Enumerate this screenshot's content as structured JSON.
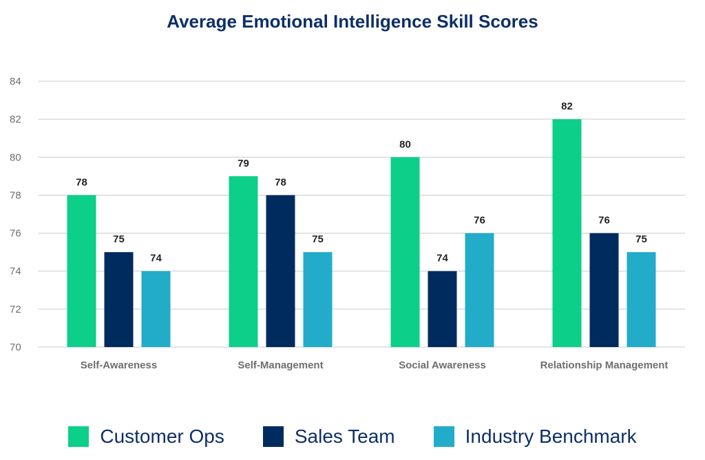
{
  "chart_data": {
    "type": "bar",
    "title": "Average Emotional Intelligence Skill Scores",
    "xlabel": "",
    "ylabel": "",
    "ylim": [
      70,
      84
    ],
    "yticks": [
      70,
      72,
      74,
      76,
      78,
      80,
      82,
      84
    ],
    "grid": true,
    "legend_position": "bottom",
    "categories": [
      "Self-Awareness",
      "Self-Management",
      "Social Awareness",
      "Relationship Management"
    ],
    "series": [
      {
        "name": "Customer Ops",
        "color": "#0ccf8a",
        "values": [
          78,
          79,
          80,
          82
        ]
      },
      {
        "name": "Sales Team",
        "color": "#002b5e",
        "values": [
          75,
          78,
          74,
          76
        ]
      },
      {
        "name": "Industry Benchmark",
        "color": "#22acca",
        "values": [
          74,
          75,
          76,
          75
        ]
      }
    ]
  }
}
